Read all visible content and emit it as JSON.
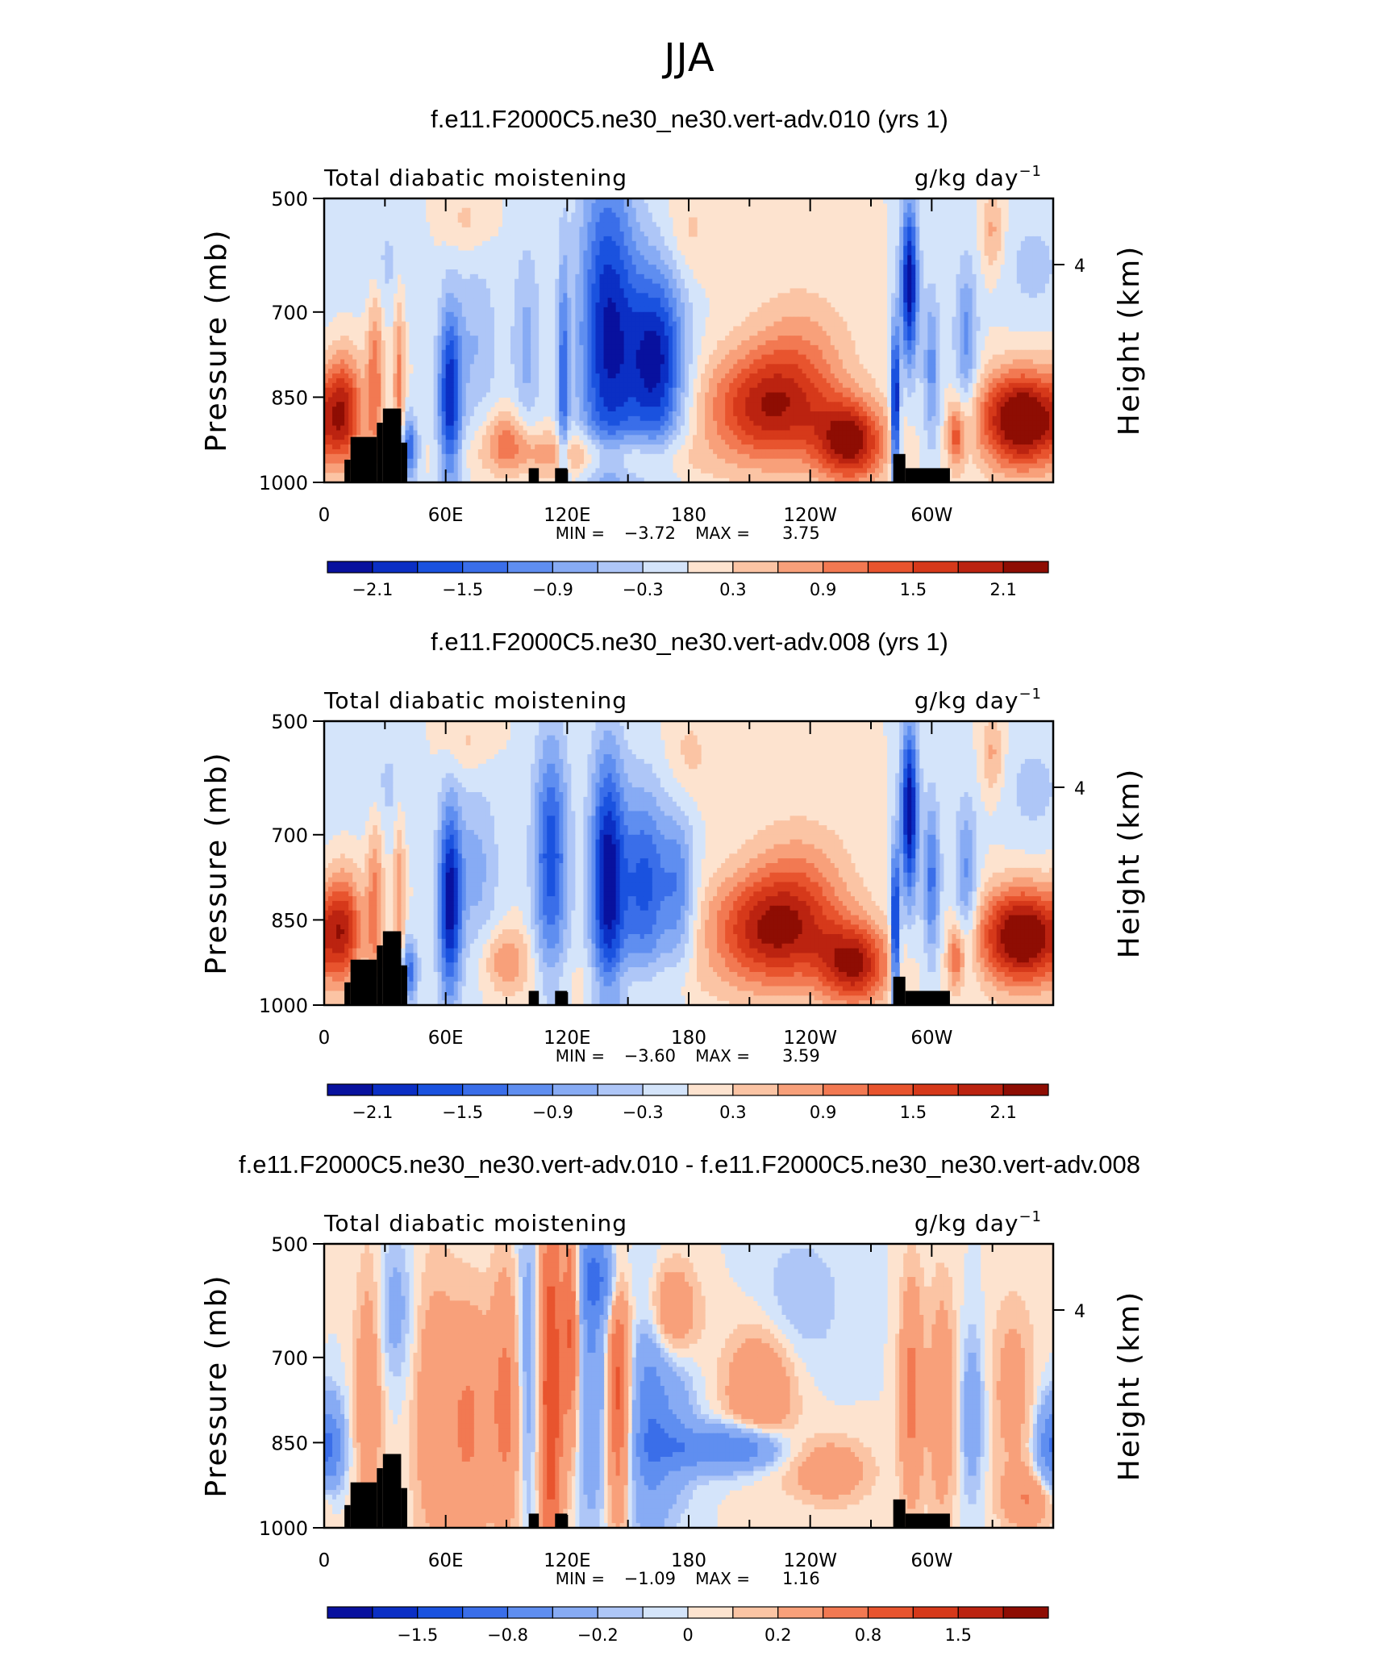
{
  "figure_title": "JJA",
  "chart_data": [
    {
      "type": "heatmap",
      "title": "f.e11.F2000C5.ne30_ne30.vert-adv.010 (yrs 1)",
      "left_label": "Total diabatic moistening",
      "units": "g/kg day",
      "units_exp": "−1",
      "ylabel": "Pressure (mb)",
      "ylabel_right": "Height (km)",
      "y_ticks": [
        "500",
        "700",
        "850",
        "1000"
      ],
      "y_tick_values": [
        500,
        700,
        850,
        1000
      ],
      "y_right_ticks": [
        "4"
      ],
      "y_right_tick_values": [
        4
      ],
      "x_ticks": [
        "0",
        "60E",
        "120E",
        "180",
        "120W",
        "60W"
      ],
      "x_tick_values": [
        0,
        60,
        120,
        180,
        240,
        300
      ],
      "xlim": [
        0,
        360
      ],
      "ylim": [
        1000,
        500
      ],
      "min_label": "MIN =",
      "min_value": "−3.72",
      "max_label": "MAX =",
      "max_value": "3.75",
      "colorbar_labels": [
        "−2.1",
        "−1.5",
        "−0.9",
        "−0.3",
        "0.3",
        "0.9",
        "1.5",
        "2.1"
      ],
      "colorbar_label_positions": [
        1,
        3,
        5,
        7,
        9,
        11,
        13,
        15
      ],
      "colorbar_levels": [
        -2.4,
        -2.1,
        -1.8,
        -1.5,
        -1.2,
        -0.9,
        -0.6,
        -0.3,
        0,
        0.3,
        0.6,
        0.9,
        1.2,
        1.5,
        1.8,
        2.1,
        2.4
      ],
      "features": [
        {
          "x": 10,
          "p": 870,
          "sx": 6,
          "sp": 70,
          "v": 1.5
        },
        {
          "x": 25,
          "p": 820,
          "sx": 3,
          "sp": 120,
          "v": 1.1
        },
        {
          "x": 37,
          "p": 830,
          "sx": 2,
          "sp": 130,
          "v": 1.0
        },
        {
          "x": 42,
          "p": 940,
          "sx": 3,
          "sp": 40,
          "v": -1.5
        },
        {
          "x": 30,
          "p": 620,
          "sx": 10,
          "sp": 70,
          "v": -0.4
        },
        {
          "x": 62,
          "p": 850,
          "sx": 4,
          "sp": 110,
          "v": -2.0
        },
        {
          "x": 75,
          "p": 760,
          "sx": 8,
          "sp": 110,
          "v": -0.6
        },
        {
          "x": 90,
          "p": 920,
          "sx": 8,
          "sp": 40,
          "v": 0.8
        },
        {
          "x": 70,
          "p": 540,
          "sx": 8,
          "sp": 40,
          "v": 0.4
        },
        {
          "x": 100,
          "p": 760,
          "sx": 5,
          "sp": 130,
          "v": -0.7
        },
        {
          "x": 118,
          "p": 830,
          "sx": 2,
          "sp": 160,
          "v": -1.3
        },
        {
          "x": 120,
          "p": 950,
          "sx": 30,
          "sp": 30,
          "v": 0.8
        },
        {
          "x": 140,
          "p": 740,
          "sx": 10,
          "sp": 210,
          "v": -2.1
        },
        {
          "x": 164,
          "p": 790,
          "sx": 10,
          "sp": 120,
          "v": -2.2
        },
        {
          "x": 180,
          "p": 560,
          "sx": 8,
          "sp": 60,
          "v": 0.4
        },
        {
          "x": 160,
          "p": 960,
          "sx": 20,
          "sp": 30,
          "v": 0.4
        },
        {
          "x": 220,
          "p": 870,
          "sx": 22,
          "sp": 70,
          "v": 2.0
        },
        {
          "x": 260,
          "p": 930,
          "sx": 12,
          "sp": 50,
          "v": 2.2
        },
        {
          "x": 235,
          "p": 760,
          "sx": 18,
          "sp": 80,
          "v": 0.6
        },
        {
          "x": 282,
          "p": 870,
          "sx": 1.5,
          "sp": 100,
          "v": -2.5
        },
        {
          "x": 289,
          "p": 650,
          "sx": 3,
          "sp": 100,
          "v": -2.4
        },
        {
          "x": 300,
          "p": 800,
          "sx": 3,
          "sp": 100,
          "v": -1.0
        },
        {
          "x": 317,
          "p": 750,
          "sx": 4,
          "sp": 100,
          "v": -1.0
        },
        {
          "x": 312,
          "p": 920,
          "sx": 3,
          "sp": 40,
          "v": 1.2
        },
        {
          "x": 345,
          "p": 890,
          "sx": 15,
          "sp": 60,
          "v": 2.8
        },
        {
          "x": 330,
          "p": 560,
          "sx": 4,
          "sp": 50,
          "v": 0.7
        },
        {
          "x": 350,
          "p": 620,
          "sx": 12,
          "sp": 70,
          "v": -0.4
        }
      ]
    },
    {
      "type": "heatmap",
      "title": "f.e11.F2000C5.ne30_ne30.vert-adv.008 (yrs 1)",
      "left_label": "Total diabatic moistening",
      "units": "g/kg day",
      "units_exp": "−1",
      "ylabel": "Pressure (mb)",
      "ylabel_right": "Height (km)",
      "y_ticks": [
        "500",
        "700",
        "850",
        "1000"
      ],
      "y_tick_values": [
        500,
        700,
        850,
        1000
      ],
      "y_right_ticks": [
        "4"
      ],
      "y_right_tick_values": [
        4
      ],
      "x_ticks": [
        "0",
        "60E",
        "120E",
        "180",
        "120W",
        "60W"
      ],
      "x_tick_values": [
        0,
        60,
        120,
        180,
        240,
        300
      ],
      "xlim": [
        0,
        360
      ],
      "ylim": [
        1000,
        500
      ],
      "min_label": "MIN =",
      "min_value": "−3.60",
      "max_label": "MAX =",
      "max_value": "3.59",
      "colorbar_labels": [
        "−2.1",
        "−1.5",
        "−0.9",
        "−0.3",
        "0.3",
        "0.9",
        "1.5",
        "2.1"
      ],
      "colorbar_label_positions": [
        1,
        3,
        5,
        7,
        9,
        11,
        13,
        15
      ],
      "colorbar_levels": [
        -2.4,
        -2.1,
        -1.8,
        -1.5,
        -1.2,
        -0.9,
        -0.6,
        -0.3,
        0,
        0.3,
        0.6,
        0.9,
        1.2,
        1.5,
        1.8,
        2.1,
        2.4
      ],
      "features": [
        {
          "x": 10,
          "p": 860,
          "sx": 6,
          "sp": 70,
          "v": 1.4
        },
        {
          "x": 25,
          "p": 820,
          "sx": 3,
          "sp": 120,
          "v": 1.0
        },
        {
          "x": 37,
          "p": 830,
          "sx": 2,
          "sp": 130,
          "v": 0.9
        },
        {
          "x": 42,
          "p": 940,
          "sx": 3,
          "sp": 40,
          "v": -1.4
        },
        {
          "x": 30,
          "p": 620,
          "sx": 10,
          "sp": 70,
          "v": -0.4
        },
        {
          "x": 62,
          "p": 820,
          "sx": 4,
          "sp": 120,
          "v": -2.2
        },
        {
          "x": 75,
          "p": 760,
          "sx": 8,
          "sp": 110,
          "v": -0.7
        },
        {
          "x": 90,
          "p": 920,
          "sx": 8,
          "sp": 40,
          "v": 0.9
        },
        {
          "x": 70,
          "p": 540,
          "sx": 8,
          "sp": 40,
          "v": 0.4
        },
        {
          "x": 112,
          "p": 740,
          "sx": 6,
          "sp": 150,
          "v": -1.7
        },
        {
          "x": 140,
          "p": 780,
          "sx": 6,
          "sp": 160,
          "v": -2.3
        },
        {
          "x": 158,
          "p": 790,
          "sx": 8,
          "sp": 120,
          "v": -1.6
        },
        {
          "x": 175,
          "p": 800,
          "sx": 6,
          "sp": 100,
          "v": -1.1
        },
        {
          "x": 180,
          "p": 560,
          "sx": 8,
          "sp": 60,
          "v": 0.4
        },
        {
          "x": 150,
          "p": 960,
          "sx": 30,
          "sp": 30,
          "v": 0.3
        },
        {
          "x": 222,
          "p": 870,
          "sx": 22,
          "sp": 70,
          "v": 2.1
        },
        {
          "x": 262,
          "p": 930,
          "sx": 12,
          "sp": 50,
          "v": 2.0
        },
        {
          "x": 235,
          "p": 770,
          "sx": 18,
          "sp": 80,
          "v": 0.6
        },
        {
          "x": 282,
          "p": 870,
          "sx": 1.5,
          "sp": 100,
          "v": -2.4
        },
        {
          "x": 289,
          "p": 660,
          "sx": 3,
          "sp": 110,
          "v": -2.4
        },
        {
          "x": 300,
          "p": 780,
          "sx": 3,
          "sp": 100,
          "v": -1.3
        },
        {
          "x": 317,
          "p": 780,
          "sx": 4,
          "sp": 100,
          "v": -1.0
        },
        {
          "x": 312,
          "p": 920,
          "sx": 3,
          "sp": 40,
          "v": 1.1
        },
        {
          "x": 345,
          "p": 880,
          "sx": 15,
          "sp": 60,
          "v": 2.7
        },
        {
          "x": 330,
          "p": 560,
          "sx": 4,
          "sp": 50,
          "v": 0.7
        },
        {
          "x": 350,
          "p": 620,
          "sx": 12,
          "sp": 70,
          "v": -0.4
        }
      ]
    },
    {
      "type": "heatmap",
      "title": "f.e11.F2000C5.ne30_ne30.vert-adv.010 - f.e11.F2000C5.ne30_ne30.vert-adv.008",
      "left_label": "Total diabatic moistening",
      "units": "g/kg day",
      "units_exp": "−1",
      "ylabel": "Pressure (mb)",
      "ylabel_right": "Height (km)",
      "y_ticks": [
        "500",
        "700",
        "850",
        "1000"
      ],
      "y_tick_values": [
        500,
        700,
        850,
        1000
      ],
      "y_right_ticks": [
        "4"
      ],
      "y_right_tick_values": [
        4
      ],
      "x_ticks": [
        "0",
        "60E",
        "120E",
        "180",
        "120W",
        "60W"
      ],
      "x_tick_values": [
        0,
        60,
        120,
        180,
        240,
        300
      ],
      "xlim": [
        0,
        360
      ],
      "ylim": [
        1000,
        500
      ],
      "min_label": "MIN =",
      "min_value": "−1.09",
      "max_label": "MAX =",
      "max_value": "1.16",
      "colorbar_labels": [
        "−1.5",
        "−0.8",
        "−0.2",
        "0",
        "0.2",
        "0.8",
        "1.5"
      ],
      "colorbar_label_positions": [
        2,
        4,
        6,
        8,
        10,
        12,
        14
      ],
      "colorbar_levels": [
        -2.0,
        -1.8,
        -1.5,
        -1.2,
        -0.8,
        -0.5,
        -0.2,
        -0.1,
        0,
        0.1,
        0.2,
        0.5,
        0.8,
        1.2,
        1.5,
        1.8,
        2.0
      ],
      "features": [
        {
          "x": 5,
          "p": 860,
          "sx": 4,
          "sp": 60,
          "v": -0.5
        },
        {
          "x": 22,
          "p": 760,
          "sx": 5,
          "sp": 160,
          "v": 0.4
        },
        {
          "x": 35,
          "p": 620,
          "sx": 6,
          "sp": 90,
          "v": -0.3
        },
        {
          "x": 55,
          "p": 800,
          "sx": 8,
          "sp": 180,
          "v": 0.4
        },
        {
          "x": 72,
          "p": 820,
          "sx": 7,
          "sp": 150,
          "v": 0.5
        },
        {
          "x": 90,
          "p": 780,
          "sx": 6,
          "sp": 160,
          "v": 0.6
        },
        {
          "x": 100,
          "p": 720,
          "sx": 4,
          "sp": 200,
          "v": -0.4
        },
        {
          "x": 112,
          "p": 760,
          "sx": 4,
          "sp": 250,
          "v": 1.1
        },
        {
          "x": 122,
          "p": 640,
          "sx": 3,
          "sp": 150,
          "v": 0.9
        },
        {
          "x": 132,
          "p": 700,
          "sx": 6,
          "sp": 200,
          "v": -0.5
        },
        {
          "x": 135,
          "p": 560,
          "sx": 8,
          "sp": 50,
          "v": -0.6
        },
        {
          "x": 145,
          "p": 760,
          "sx": 4,
          "sp": 150,
          "v": 0.9
        },
        {
          "x": 160,
          "p": 800,
          "sx": 6,
          "sp": 160,
          "v": -0.6
        },
        {
          "x": 172,
          "p": 820,
          "sx": 8,
          "sp": 100,
          "v": -0.4
        },
        {
          "x": 190,
          "p": 860,
          "sx": 20,
          "sp": 30,
          "v": -0.6
        },
        {
          "x": 210,
          "p": 860,
          "sx": 12,
          "sp": 25,
          "v": -0.5
        },
        {
          "x": 215,
          "p": 760,
          "sx": 12,
          "sp": 80,
          "v": 0.5
        },
        {
          "x": 170,
          "p": 620,
          "sx": 10,
          "sp": 60,
          "v": 0.5
        },
        {
          "x": 250,
          "p": 900,
          "sx": 14,
          "sp": 40,
          "v": 0.4
        },
        {
          "x": 235,
          "p": 600,
          "sx": 15,
          "sp": 80,
          "v": -0.2
        },
        {
          "x": 290,
          "p": 760,
          "sx": 4,
          "sp": 140,
          "v": 0.6
        },
        {
          "x": 305,
          "p": 780,
          "sx": 5,
          "sp": 150,
          "v": 0.4
        },
        {
          "x": 320,
          "p": 800,
          "sx": 4,
          "sp": 100,
          "v": -0.4
        },
        {
          "x": 340,
          "p": 760,
          "sx": 8,
          "sp": 120,
          "v": 0.3
        },
        {
          "x": 358,
          "p": 860,
          "sx": 5,
          "sp": 60,
          "v": -0.7
        },
        {
          "x": 350,
          "p": 950,
          "sx": 10,
          "sp": 35,
          "v": 0.5
        }
      ]
    }
  ],
  "topography": [
    {
      "x0": 10,
      "x1": 13,
      "p0": 960
    },
    {
      "x0": 13,
      "x1": 26,
      "p0": 920
    },
    {
      "x0": 26,
      "x1": 29,
      "p0": 895
    },
    {
      "x0": 29,
      "x1": 38,
      "p0": 870
    },
    {
      "x0": 38,
      "x1": 41,
      "p0": 930
    },
    {
      "x0": 101,
      "x1": 106,
      "p0": 975
    },
    {
      "x0": 114,
      "x1": 120,
      "p0": 975
    },
    {
      "x0": 281,
      "x1": 287,
      "p0": 950
    },
    {
      "x0": 287,
      "x1": 309,
      "p0": 975
    }
  ],
  "palette": [
    "#08119e",
    "#0b2fc4",
    "#1a52df",
    "#3a6ee9",
    "#5f8ef0",
    "#87abf4",
    "#aec6f7",
    "#d4e4fa",
    "#fde3cf",
    "#fbc4a4",
    "#f8a07a",
    "#f27952",
    "#e8542e",
    "#d6391a",
    "#bb2310",
    "#8e0d03"
  ]
}
